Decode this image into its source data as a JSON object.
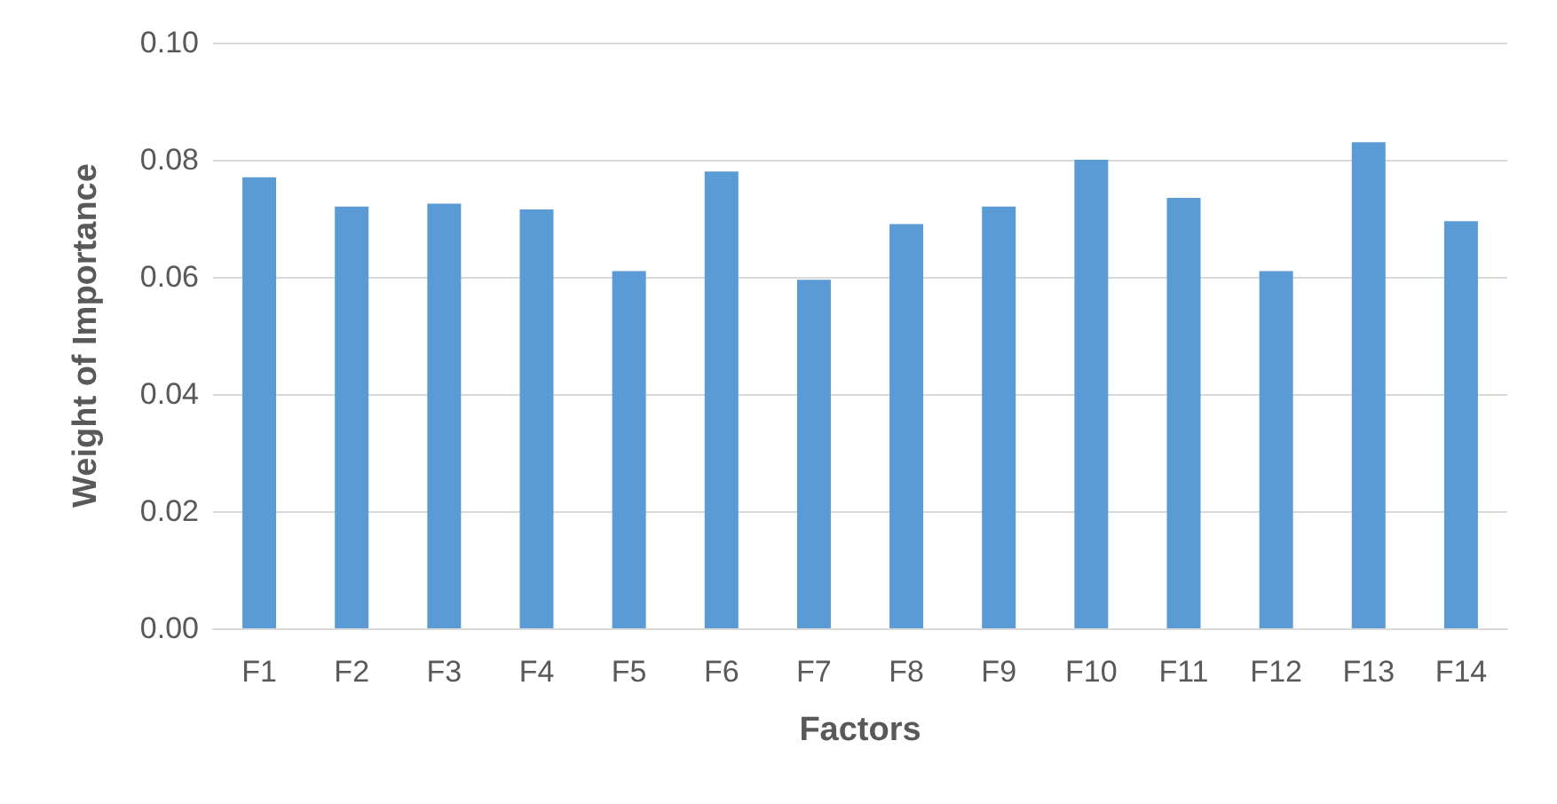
{
  "chart_data": {
    "type": "bar",
    "xlabel": "Factors",
    "ylabel": "Weight of Importance",
    "categories": [
      "F1",
      "F2",
      "F3",
      "F4",
      "F5",
      "F6",
      "F7",
      "F8",
      "F9",
      "F10",
      "F11",
      "F12",
      "F13",
      "F14"
    ],
    "values": [
      0.077,
      0.072,
      0.0725,
      0.0715,
      0.061,
      0.078,
      0.0595,
      0.069,
      0.072,
      0.08,
      0.0735,
      0.061,
      0.083,
      0.0695
    ],
    "color": "#5b9bd5",
    "ylim": [
      0,
      0.1
    ],
    "yticks": [
      {
        "value": 0,
        "label": "0.00"
      },
      {
        "value": 0.02,
        "label": "0.02"
      },
      {
        "value": 0.04,
        "label": "0.04"
      },
      {
        "value": 0.06,
        "label": "0.06"
      },
      {
        "value": 0.08,
        "label": "0.08"
      },
      {
        "value": 0.1,
        "label": "0.10"
      }
    ],
    "grid": "y"
  }
}
